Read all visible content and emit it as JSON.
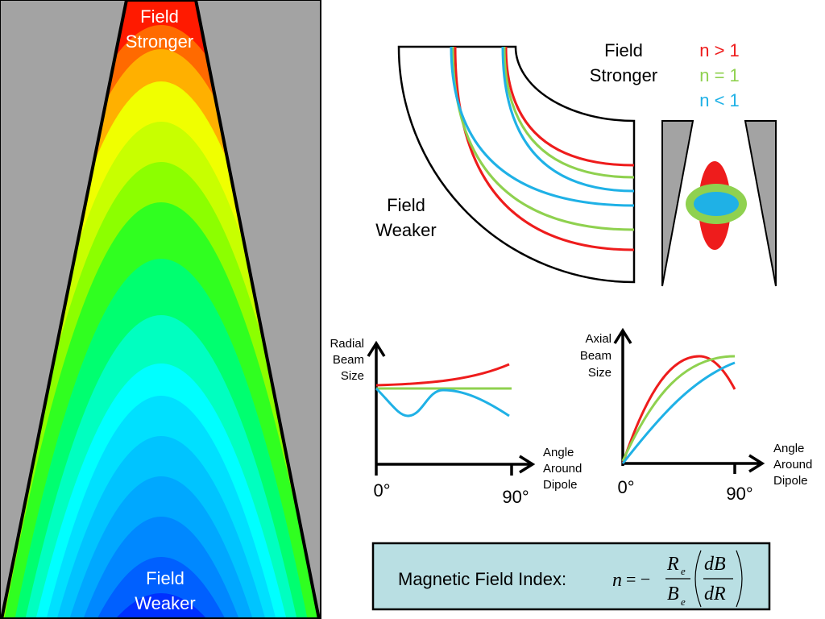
{
  "contour": {
    "top_label": [
      "Field",
      "Stronger"
    ],
    "bottom_label": [
      "Field",
      "Weaker"
    ]
  },
  "dipole": {
    "stronger_label": [
      "Field",
      "Stronger"
    ],
    "weaker_label": [
      "Field",
      "Weaker"
    ]
  },
  "legend": [
    {
      "label": "n > 1",
      "color": "#ee1c1c"
    },
    {
      "label": "n = 1",
      "color": "#8fd14f"
    },
    {
      "label": "n < 1",
      "color": "#1fb1e6"
    }
  ],
  "radial_chart": {
    "ylabel": [
      "Radial",
      "Beam",
      "Size"
    ],
    "xlabel": [
      "Angle",
      "Around",
      "Dipole"
    ],
    "x_ticks": [
      "0°",
      "90°"
    ]
  },
  "axial_chart": {
    "ylabel": [
      "Axial",
      "Beam",
      "Size"
    ],
    "xlabel": [
      "Angle",
      "Around",
      "Dipole"
    ],
    "x_ticks": [
      "0°",
      "90°"
    ]
  },
  "formula": {
    "label": "Magnetic Field Index:",
    "n": "n",
    "eq": "= −",
    "Re": "R",
    "Be": "B",
    "sub": "e",
    "dB": "dB",
    "dR": "dR"
  }
}
